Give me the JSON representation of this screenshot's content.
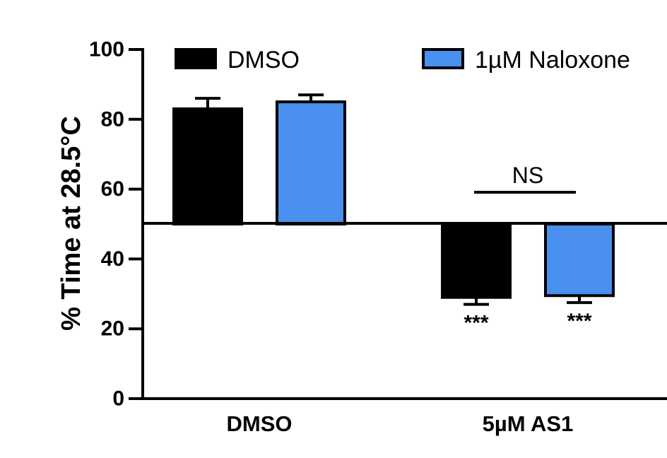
{
  "chart_data": {
    "type": "bar",
    "categories": [
      "DMSO",
      "5µM AS1"
    ],
    "series": [
      {
        "name": "DMSO",
        "color": "#000000",
        "values": [
          83,
          29
        ],
        "errors": [
          3,
          2
        ]
      },
      {
        "name": "1µM Naloxone",
        "color": "#4a90ee",
        "values": [
          85,
          29.5
        ],
        "errors": [
          2,
          2
        ]
      }
    ],
    "baseline": 50,
    "ylabel": "% Time at 28.5°C",
    "ylim": [
      0,
      100
    ],
    "yticks": [
      "0",
      "20",
      "40",
      "60",
      "80",
      "100"
    ],
    "legend": "top",
    "grid": false,
    "significance": [
      {
        "category": 1,
        "series": 0,
        "label": "***"
      },
      {
        "category": 1,
        "series": 1,
        "label": "***"
      }
    ],
    "comparison": {
      "category": 1,
      "label": "NS"
    }
  }
}
